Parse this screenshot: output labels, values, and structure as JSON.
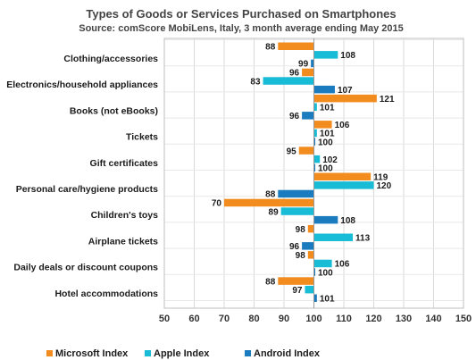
{
  "chart_data": {
    "type": "bar",
    "orientation": "horizontal",
    "title": "Types of Goods or Services Purchased on Smartphones",
    "subtitle": "Source: comScore MobiLens, Italy, 3 month average ending May 2015",
    "categories": [
      "Clothing/accessories",
      "Electronics/household appliances",
      "Books (not eBooks)",
      "Tickets",
      "Gift certificates",
      "Personal care/hygiene products",
      "Children's toys",
      "Airplane tickets",
      "Daily deals or discount coupons",
      "Hotel accommodations"
    ],
    "series": [
      {
        "name": "Microsoft Index",
        "color": "#F28C1E",
        "values": [
          88,
          96,
          121,
          106,
          95,
          119,
          70,
          98,
          98,
          88
        ]
      },
      {
        "name": "Apple Index",
        "color": "#18BCD6",
        "values": [
          108,
          83,
          101,
          101,
          102,
          120,
          89,
          113,
          106,
          97
        ]
      },
      {
        "name": "Android Index",
        "color": "#1B7BBF",
        "values": [
          99,
          107,
          96,
          100,
          100,
          88,
          108,
          96,
          100,
          101
        ]
      }
    ],
    "baseline": 100,
    "xlim": [
      50,
      150
    ],
    "xticks": [
      50,
      60,
      70,
      80,
      90,
      100,
      110,
      120,
      130,
      140,
      150
    ],
    "grid": "vertical",
    "legend": "bottom"
  }
}
